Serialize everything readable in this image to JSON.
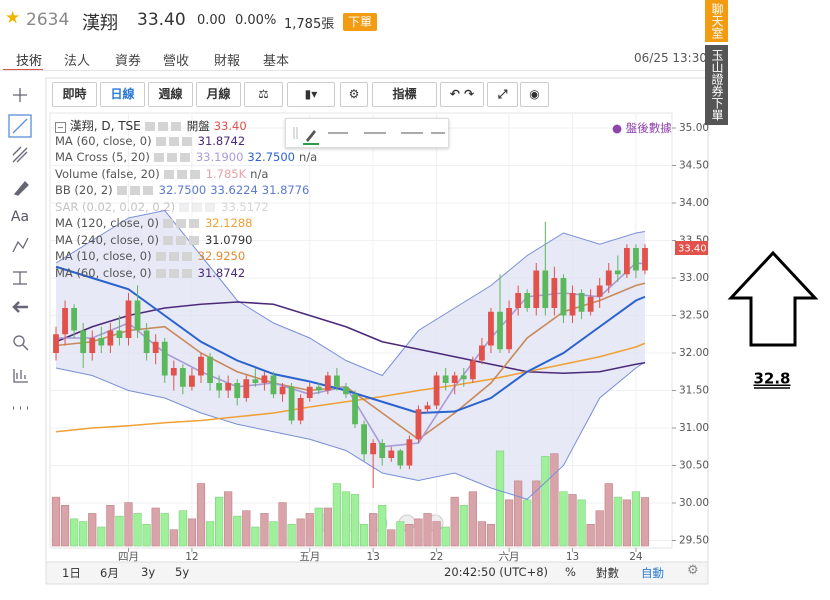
{
  "header": {
    "code": "2634",
    "name": "漢翔",
    "price": "33.40",
    "change": "0.00",
    "change_pct": "0.00%",
    "volume": "1,785張",
    "order_button": "下單"
  },
  "tabs": [
    "技術",
    "法人",
    "資券",
    "營收",
    "財報",
    "基本"
  ],
  "timestamp": "06/25 13:30",
  "side_buttons": [
    "聊天室",
    "玉山證券下單"
  ],
  "toolbar": [
    "即時",
    "日線",
    "週線",
    "月線",
    "指標"
  ],
  "left_tools_text": "Aa",
  "bottom_bar": {
    "ranges": [
      "1日",
      "6月",
      "3y",
      "5y"
    ],
    "clock": "20:42:50 (UTC+8)",
    "percent": "%",
    "log": "對數",
    "auto": "自動"
  },
  "annotation": "32.8",
  "chart_data": {
    "type": "candlestick",
    "legend_title": "漢翔, D, TSE",
    "open_label": "開盤",
    "open_value": "33.40",
    "after_hours": "盤後數據",
    "last_price": {
      "value": 33.4,
      "label": "33.40"
    },
    "categories": [
      null,
      null,
      null,
      null,
      null,
      null,
      null,
      null,
      "四月",
      null,
      null,
      null,
      null,
      null,
      null,
      "12",
      null,
      null,
      null,
      null,
      null,
      null,
      null,
      null,
      null,
      null,
      null,
      null,
      "五月",
      null,
      null,
      null,
      null,
      null,
      null,
      "13",
      null,
      null,
      null,
      null,
      null,
      null,
      "22",
      null,
      null,
      null,
      null,
      null,
      null,
      null,
      "六月",
      null,
      null,
      null,
      null,
      null,
      null,
      "13",
      null,
      null,
      null,
      null,
      null,
      null,
      "24",
      null
    ],
    "open": [
      32.0,
      32.25,
      32.6,
      32.3,
      32.0,
      32.2,
      32.1,
      32.3,
      32.2,
      32.7,
      32.3,
      32.0,
      32.15,
      31.7,
      31.8,
      31.55,
      31.7,
      31.95,
      31.6,
      31.5,
      31.6,
      31.4,
      31.65,
      31.6,
      31.7,
      31.45,
      31.55,
      31.1,
      31.4,
      31.55,
      31.5,
      31.7,
      31.55,
      31.45,
      31.05,
      30.65,
      30.8,
      30.6,
      30.7,
      30.5,
      30.85,
      31.25,
      31.3,
      31.7,
      31.6,
      31.7,
      31.65,
      31.9,
      32.1,
      32.55,
      32.05,
      32.6,
      32.8,
      32.6,
      33.1,
      32.6,
      33.0,
      32.5,
      32.8,
      32.55,
      32.75,
      32.9,
      33.1,
      33.05,
      33.4,
      33.1
    ],
    "high": [
      32.35,
      32.7,
      32.65,
      32.4,
      32.3,
      32.35,
      32.4,
      32.5,
      32.8,
      32.9,
      32.4,
      32.25,
      32.2,
      31.9,
      31.85,
      31.8,
      32.0,
      32.0,
      31.7,
      31.7,
      31.65,
      31.7,
      31.8,
      31.75,
      31.75,
      31.6,
      31.6,
      31.45,
      31.6,
      31.6,
      31.75,
      31.8,
      31.6,
      31.5,
      31.1,
      30.85,
      30.85,
      30.75,
      30.72,
      30.9,
      31.3,
      31.35,
      31.75,
      31.8,
      31.75,
      31.8,
      31.95,
      32.2,
      32.6,
      33.05,
      32.7,
      32.9,
      32.85,
      33.2,
      33.75,
      33.15,
      33.05,
      32.9,
      32.85,
      32.85,
      33.0,
      33.2,
      33.3,
      33.45,
      33.45,
      33.45
    ],
    "low": [
      31.9,
      32.1,
      32.2,
      31.8,
      31.9,
      32.0,
      32.0,
      32.1,
      32.1,
      32.2,
      31.9,
      31.85,
      31.6,
      31.5,
      31.45,
      31.5,
      31.6,
      31.5,
      31.4,
      31.4,
      31.3,
      31.35,
      31.55,
      31.5,
      31.4,
      31.35,
      31.05,
      31.05,
      31.35,
      31.45,
      31.45,
      31.5,
      31.4,
      31.0,
      30.55,
      30.2,
      30.5,
      30.55,
      30.45,
      30.45,
      30.8,
      31.2,
      31.25,
      31.5,
      31.45,
      31.55,
      31.6,
      31.85,
      32.0,
      32.0,
      32.0,
      32.5,
      32.55,
      32.5,
      32.5,
      32.5,
      32.4,
      32.4,
      32.45,
      32.5,
      32.6,
      32.8,
      32.95,
      33.0,
      33.0,
      33.05
    ],
    "close": [
      32.25,
      32.6,
      32.3,
      32.0,
      32.2,
      32.1,
      32.3,
      32.2,
      32.7,
      32.3,
      32.0,
      32.15,
      31.7,
      31.8,
      31.55,
      31.7,
      31.95,
      31.6,
      31.5,
      31.6,
      31.4,
      31.65,
      31.6,
      31.7,
      31.45,
      31.55,
      31.1,
      31.4,
      31.55,
      31.5,
      31.7,
      31.55,
      31.45,
      31.05,
      30.65,
      30.8,
      30.6,
      30.7,
      30.5,
      30.85,
      31.25,
      31.3,
      31.7,
      31.6,
      31.7,
      31.65,
      31.9,
      32.1,
      32.55,
      32.05,
      32.6,
      32.8,
      32.6,
      33.1,
      32.6,
      33.0,
      32.5,
      32.8,
      32.55,
      32.75,
      32.9,
      33.1,
      33.05,
      33.4,
      33.1,
      33.4
    ],
    "volume": [
      1800,
      1500,
      1000,
      900,
      1200,
      700,
      1500,
      1100,
      1600,
      1200,
      800,
      1400,
      1200,
      600,
      1300,
      1000,
      2300,
      900,
      1800,
      2000,
      1100,
      1300,
      700,
      1200,
      900,
      1600,
      800,
      1000,
      1200,
      1400,
      1400,
      2300,
      2000,
      1900,
      800,
      1200,
      1500,
      600,
      900,
      800,
      1000,
      1200,
      900,
      700,
      1800,
      1500,
      2000,
      900,
      800,
      3500,
      1700,
      2400,
      1700,
      2400,
      3300,
      3400,
      2000,
      1900,
      1700,
      800,
      1300,
      2300,
      1800,
      1700,
      2000,
      1785
    ],
    "up_color": "#e0524b",
    "down_color": "#5cb85c",
    "volume_up_color": "#d9a4a9",
    "volume_down_color": "#9ff09a",
    "ylim": [
      29.4,
      35.2
    ],
    "yticks": [
      {
        "value": 29.5,
        "label": "29.50"
      },
      {
        "value": 30,
        "label": "30.00"
      },
      {
        "value": 30.5,
        "label": "30.50"
      },
      {
        "value": 31,
        "label": "31.00"
      },
      {
        "value": 31.5,
        "label": "31.50"
      },
      {
        "value": 32,
        "label": "32.00"
      },
      {
        "value": 32.5,
        "label": "32.50"
      },
      {
        "value": 33,
        "label": "33.00"
      },
      {
        "value": 33.5,
        "label": "33.50"
      },
      {
        "value": 34,
        "label": "34.00"
      },
      {
        "value": 34.5,
        "label": "34.50"
      },
      {
        "value": 35,
        "label": "35.00"
      }
    ],
    "grid": true,
    "x": [
      0,
      4,
      8,
      12,
      16,
      20,
      24,
      28,
      32,
      36,
      40,
      44,
      48,
      52,
      56,
      60,
      64,
      65
    ],
    "bands": {
      "color": "#dfe1f3",
      "line_color": "#7b8fd6",
      "upper": [
        33.2,
        33.5,
        33.8,
        33.9,
        33.3,
        32.7,
        32.4,
        32.2,
        31.9,
        31.7,
        32.3,
        32.6,
        32.9,
        33.3,
        33.6,
        33.45,
        33.6,
        33.62
      ],
      "lower": [
        31.8,
        31.7,
        31.5,
        31.4,
        31.2,
        31.05,
        30.95,
        30.85,
        30.7,
        30.4,
        30.3,
        30.4,
        30.2,
        30.05,
        30.5,
        31.4,
        31.8,
        31.88
      ]
    },
    "series": [
      {
        "color": "#4b2a7a",
        "values": [
          32.15,
          32.35,
          32.5,
          32.6,
          32.65,
          32.68,
          32.65,
          32.5,
          32.35,
          32.15,
          32.05,
          31.95,
          31.85,
          31.75,
          31.73,
          31.75,
          31.85,
          31.87
        ]
      },
      {
        "color": "#f0a035",
        "values": [
          30.95,
          31.0,
          31.03,
          31.07,
          31.1,
          31.15,
          31.2,
          31.28,
          31.35,
          31.42,
          31.5,
          31.57,
          31.65,
          31.75,
          31.85,
          31.95,
          32.08,
          32.13
        ]
      },
      {
        "color": "#c98a5a",
        "values": [
          32.1,
          32.15,
          32.3,
          32.35,
          32.0,
          31.75,
          31.6,
          31.5,
          31.55,
          31.2,
          30.85,
          31.2,
          31.6,
          32.2,
          32.55,
          32.7,
          32.9,
          32.93
        ]
      },
      {
        "color": "#a99ad8",
        "values": [
          32.2,
          32.2,
          32.4,
          32.0,
          31.75,
          31.55,
          31.6,
          31.45,
          31.55,
          30.75,
          30.8,
          31.55,
          32.2,
          32.75,
          32.8,
          32.75,
          33.2,
          33.19
        ]
      },
      {
        "color": "#2a62d0",
        "values": [
          33.15,
          33.0,
          32.85,
          32.5,
          32.15,
          31.9,
          31.72,
          31.62,
          31.5,
          31.35,
          31.2,
          31.22,
          31.4,
          31.75,
          32.0,
          32.35,
          32.7,
          32.75
        ]
      }
    ],
    "legend": [
      {
        "name": "MA (60, close, 0)",
        "values": [
          "31.8742"
        ],
        "colors": [
          "#4b2a7a"
        ]
      },
      {
        "name": "MA Cross (5, 20)",
        "values": [
          "33.1900",
          "32.7500",
          "n/a"
        ],
        "colors": [
          "#a99ad8",
          "#2a62d0",
          "#555555"
        ]
      },
      {
        "name": "Volume (false, 20)",
        "values": [
          "1.785K",
          "n/a"
        ],
        "colors": [
          "#e8a0a8",
          "#555555"
        ]
      },
      {
        "name": "BB (20, 2)",
        "values": [
          "32.7500",
          "33.6224",
          "31.8776"
        ],
        "colors": [
          "#5b7ad0",
          "#5b7ad0",
          "#5b7ad0"
        ]
      },
      {
        "name": "SAR (0.02, 0.02, 0.2)",
        "values": [
          "33.5172"
        ],
        "colors": [
          "#888888"
        ],
        "hidden": true
      },
      {
        "name": "MA (120, close, 0)",
        "values": [
          "32.1288"
        ],
        "colors": [
          "#f0a035"
        ]
      },
      {
        "name": "MA (240, close, 0)",
        "values": [
          "31.0790"
        ],
        "colors": [
          "#333333"
        ]
      },
      {
        "name": "MA (10, close, 0)",
        "values": [
          "32.9250"
        ],
        "colors": [
          "#e08a30"
        ]
      },
      {
        "name": "MA (60, close, 0)",
        "values": [
          "31.8742"
        ],
        "colors": [
          "#4b2a7a"
        ]
      }
    ]
  }
}
